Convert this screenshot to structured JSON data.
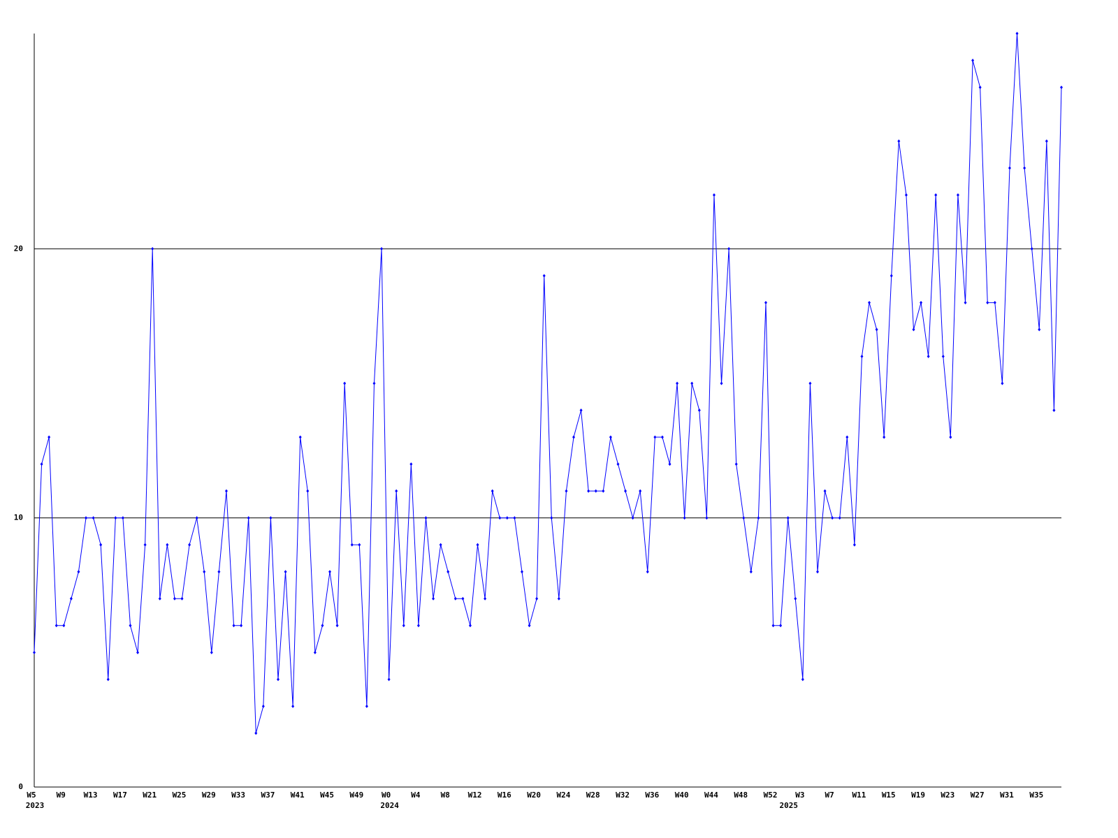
{
  "chart_data": {
    "type": "line",
    "categories": [
      "W5",
      null,
      null,
      null,
      "W9",
      null,
      null,
      null,
      "W13",
      null,
      null,
      null,
      "W17",
      null,
      null,
      null,
      "W21",
      null,
      null,
      null,
      "W25",
      null,
      null,
      null,
      "W29",
      null,
      null,
      null,
      "W33",
      null,
      null,
      null,
      "W37",
      null,
      null,
      null,
      "W41",
      null,
      null,
      null,
      "W45",
      null,
      null,
      null,
      "W49",
      null,
      null,
      null,
      "W0",
      null,
      null,
      null,
      "W4",
      null,
      null,
      null,
      "W8",
      null,
      null,
      null,
      "W12",
      null,
      null,
      null,
      "W16",
      null,
      null,
      null,
      "W20",
      null,
      null,
      null,
      "W24",
      null,
      null,
      null,
      "W28",
      null,
      null,
      null,
      "W32",
      null,
      null,
      null,
      "W36",
      null,
      null,
      null,
      "W40",
      null,
      null,
      null,
      "W44",
      null,
      null,
      null,
      "W48",
      null,
      null,
      null,
      "W52",
      null,
      null,
      null,
      "W3",
      null,
      null,
      null,
      "W7",
      null,
      null,
      null,
      "W11",
      null,
      null,
      null,
      "W15",
      null,
      null,
      null,
      "W19",
      null,
      null,
      null,
      "W23",
      null,
      null,
      null,
      "W27",
      null,
      null,
      null,
      "W31",
      null,
      null,
      null,
      "W35",
      null,
      null,
      null
    ],
    "year_labels": [
      "2023",
      null,
      null,
      null,
      null,
      null,
      null,
      null,
      null,
      null,
      null,
      null,
      null,
      null,
      null,
      null,
      null,
      null,
      null,
      null,
      null,
      null,
      null,
      null,
      null,
      null,
      null,
      null,
      null,
      null,
      null,
      null,
      null,
      null,
      null,
      null,
      null,
      null,
      null,
      null,
      null,
      null,
      null,
      null,
      null,
      null,
      null,
      null,
      "2024",
      null,
      null,
      null,
      null,
      null,
      null,
      null,
      null,
      null,
      null,
      null,
      null,
      null,
      null,
      null,
      null,
      null,
      null,
      null,
      null,
      null,
      null,
      null,
      null,
      null,
      null,
      null,
      null,
      null,
      null,
      null,
      null,
      null,
      null,
      null,
      null,
      null,
      null,
      null,
      null,
      null,
      null,
      null,
      null,
      null,
      null,
      null,
      null,
      null,
      null,
      null,
      null,
      null,
      "2025",
      null,
      null,
      null,
      null,
      null,
      null,
      null,
      null,
      null,
      null,
      null,
      null,
      null,
      null,
      null,
      null,
      null,
      null,
      null,
      null,
      null,
      null,
      null,
      null,
      null,
      null,
      null,
      null,
      null,
      null,
      null,
      null,
      null,
      null,
      null,
      null,
      null
    ],
    "series": [
      {
        "color": "#0000ff",
        "values": [
          5,
          12,
          13,
          6,
          6,
          7,
          8,
          10,
          10,
          9,
          4,
          10,
          10,
          6,
          5,
          9,
          20,
          7,
          9,
          7,
          7,
          9,
          10,
          8,
          5,
          8,
          11,
          6,
          6,
          10,
          2,
          3,
          10,
          4,
          8,
          3,
          13,
          11,
          5,
          6,
          8,
          6,
          15,
          9,
          9,
          3,
          15,
          20,
          4,
          11,
          6,
          12,
          6,
          10,
          7,
          9,
          8,
          7,
          7,
          6,
          9,
          7,
          11,
          10,
          10,
          10,
          8,
          6,
          7,
          19,
          10,
          7,
          11,
          13,
          14,
          11,
          11,
          11,
          13,
          12,
          11,
          10,
          11,
          8,
          13,
          13,
          12,
          15,
          10,
          15,
          14,
          10,
          22,
          15,
          20,
          12,
          10,
          8,
          10,
          18,
          6,
          6,
          10,
          7,
          4,
          15,
          8,
          11,
          10,
          10,
          13,
          9,
          16,
          18,
          17,
          13,
          19,
          24,
          22,
          17,
          18,
          16,
          22,
          16,
          13,
          22,
          18,
          27,
          26,
          18,
          18,
          15,
          23,
          28,
          23,
          20,
          17,
          24,
          14,
          26
        ]
      }
    ],
    "ylim": [
      0,
      28
    ],
    "yticks": [
      0,
      10,
      20
    ],
    "grid": true
  }
}
